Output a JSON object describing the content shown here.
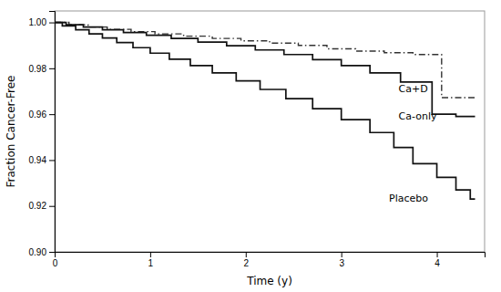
{
  "chart_data": {
    "type": "line",
    "xlabel": "Time (y)",
    "ylabel": "Fraction Cancer-Free",
    "xlim": [
      0,
      4.5
    ],
    "ylim": [
      0.9,
      1.005
    ],
    "xticks": [
      0,
      1,
      2,
      3,
      4
    ],
    "yticks": [
      {
        "value": 0.9,
        "label": "0.90"
      },
      0.92,
      0.94,
      0.96,
      0.98,
      {
        "value": 1.0,
        "label": "1.00"
      }
    ],
    "grid": false,
    "series": [
      {
        "name": "Ca+D",
        "color": "#333333",
        "line_style": "dashdot",
        "x": [
          0,
          0.15,
          0.15,
          0.35,
          0.35,
          0.55,
          0.55,
          0.8,
          0.8,
          1.05,
          1.05,
          1.35,
          1.35,
          1.65,
          1.65,
          1.95,
          1.95,
          2.25,
          2.25,
          2.55,
          2.55,
          2.85,
          2.85,
          3.15,
          3.15,
          3.45,
          3.45,
          3.75,
          3.75,
          4.05,
          4.05,
          4.4
        ],
        "values": [
          1.0,
          1.0,
          0.999,
          0.999,
          0.998,
          0.998,
          0.997,
          0.997,
          0.996,
          0.996,
          0.995,
          0.995,
          0.994,
          0.994,
          0.993,
          0.993,
          0.992,
          0.992,
          0.991,
          0.991,
          0.99,
          0.99,
          0.9885,
          0.9885,
          0.9875,
          0.9875,
          0.9868,
          0.9868,
          0.986,
          0.986,
          0.9672,
          0.9672
        ]
      },
      {
        "name": "Ca-only",
        "color": "#111111",
        "line_style": "solid",
        "x": [
          0,
          0.12,
          0.12,
          0.3,
          0.3,
          0.5,
          0.5,
          0.72,
          0.72,
          0.96,
          0.96,
          1.22,
          1.22,
          1.5,
          1.5,
          1.8,
          1.8,
          2.1,
          2.1,
          2.4,
          2.4,
          2.7,
          2.7,
          3.0,
          3.0,
          3.3,
          3.3,
          3.62,
          3.62,
          3.95,
          3.95,
          4.2,
          4.2,
          4.4
        ],
        "values": [
          1.0,
          1.0,
          0.999,
          0.999,
          0.998,
          0.998,
          0.9968,
          0.9968,
          0.9956,
          0.9956,
          0.9944,
          0.9944,
          0.993,
          0.993,
          0.9914,
          0.9914,
          0.9898,
          0.9898,
          0.988,
          0.988,
          0.986,
          0.986,
          0.9838,
          0.9838,
          0.9812,
          0.9812,
          0.978,
          0.978,
          0.974,
          0.974,
          0.96,
          0.96,
          0.959,
          0.959
        ]
      },
      {
        "name": "Placebo",
        "color": "#111111",
        "line_style": "solid",
        "x": [
          0,
          0.08,
          0.08,
          0.22,
          0.22,
          0.36,
          0.36,
          0.5,
          0.5,
          0.65,
          0.65,
          0.82,
          0.82,
          1.0,
          1.0,
          1.2,
          1.2,
          1.42,
          1.42,
          1.65,
          1.65,
          1.9,
          1.9,
          2.15,
          2.15,
          2.42,
          2.42,
          2.7,
          2.7,
          3.0,
          3.0,
          3.3,
          3.3,
          3.55,
          3.55,
          3.75,
          3.75,
          4.0,
          4.0,
          4.2,
          4.2,
          4.35,
          4.35,
          4.4
        ],
        "values": [
          1.0,
          1.0,
          0.9985,
          0.9985,
          0.9968,
          0.9968,
          0.995,
          0.995,
          0.9932,
          0.9932,
          0.9912,
          0.9912,
          0.989,
          0.989,
          0.9866,
          0.9866,
          0.984,
          0.984,
          0.9812,
          0.9812,
          0.978,
          0.978,
          0.9745,
          0.9745,
          0.9708,
          0.9708,
          0.9668,
          0.9668,
          0.9624,
          0.9624,
          0.9576,
          0.9576,
          0.952,
          0.952,
          0.9455,
          0.9455,
          0.9384,
          0.9384,
          0.9325,
          0.9325,
          0.927,
          0.927,
          0.923,
          0.923
        ]
      }
    ],
    "annotations": [
      {
        "text": "Ca+D",
        "x": 3.6,
        "y": 0.969
      },
      {
        "text": "Ca-only",
        "x": 3.6,
        "y": 0.957
      },
      {
        "text": "Placebo",
        "x": 3.5,
        "y": 0.921
      }
    ]
  }
}
